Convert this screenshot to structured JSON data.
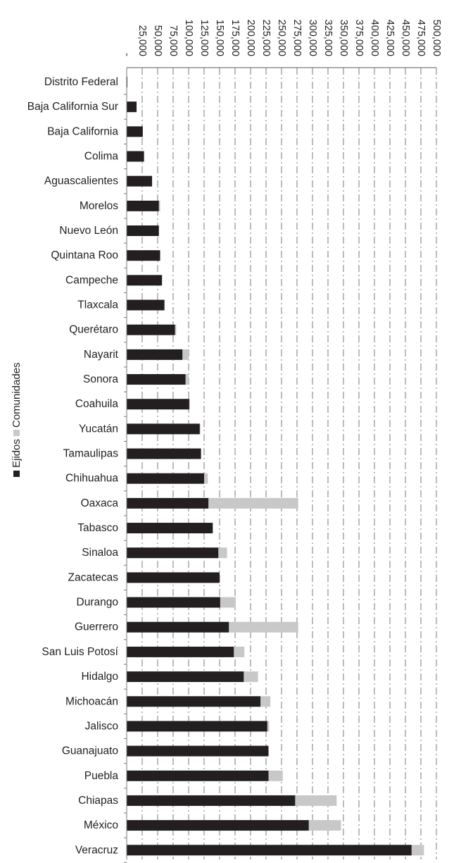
{
  "chart_data": {
    "type": "bar",
    "orientation": "horizontal",
    "stacked": true,
    "categories": [
      "Distrito Federal",
      "Baja California Sur",
      "Baja California",
      "Colima",
      "Aguascalientes",
      "Morelos",
      "Nuevo León",
      "Quintana Roo",
      "Campeche",
      "Tlaxcala",
      "Querétaro",
      "Nayarit",
      "Sonora",
      "Coahuila",
      "Yucatán",
      "Tamaulipas",
      "Chihuahua",
      "Oaxaca",
      "Tabasco",
      "Sinaloa",
      "Zacatecas",
      "Durango",
      "Guerrero",
      "San Luis Potosí",
      "Hidalgo",
      "Michoacán",
      "Jalisco",
      "Guanajuato",
      "Puebla",
      "Chiapas",
      "México",
      "Veracruz"
    ],
    "series": [
      {
        "name": "Ejidos",
        "color": "#231f20",
        "values": [
          1000,
          16000,
          26000,
          28000,
          41000,
          52000,
          52000,
          54000,
          57000,
          61000,
          78000,
          90000,
          95000,
          101000,
          118000,
          120000,
          125000,
          132000,
          139000,
          148000,
          150000,
          151000,
          165000,
          173000,
          189000,
          216000,
          227000,
          229000,
          229000,
          272000,
          294000,
          460000
        ]
      },
      {
        "name": "Comunidades",
        "color": "#c8c8c8",
        "values": [
          0,
          0,
          0,
          0,
          0,
          2000,
          0,
          0,
          0,
          0,
          2000,
          10000,
          5000,
          1000,
          1000,
          0,
          6000,
          145000,
          0,
          14000,
          0,
          25000,
          112000,
          17000,
          23000,
          16000,
          3000,
          0,
          23000,
          67000,
          52000,
          20000
        ]
      }
    ],
    "x_ticks": [
      "-",
      "25,000",
      "50,000",
      "75,000",
      "100,000",
      "125,000",
      "150,000",
      "175,000",
      "200,000",
      "225,000",
      "250,000",
      "275,000",
      "300,000",
      "325,000",
      "350,000",
      "375,000",
      "400,000",
      "425,000",
      "450,000",
      "475,000",
      "500,000"
    ],
    "xlim": [
      0,
      500000
    ],
    "grid": true,
    "legend_position": "left"
  }
}
